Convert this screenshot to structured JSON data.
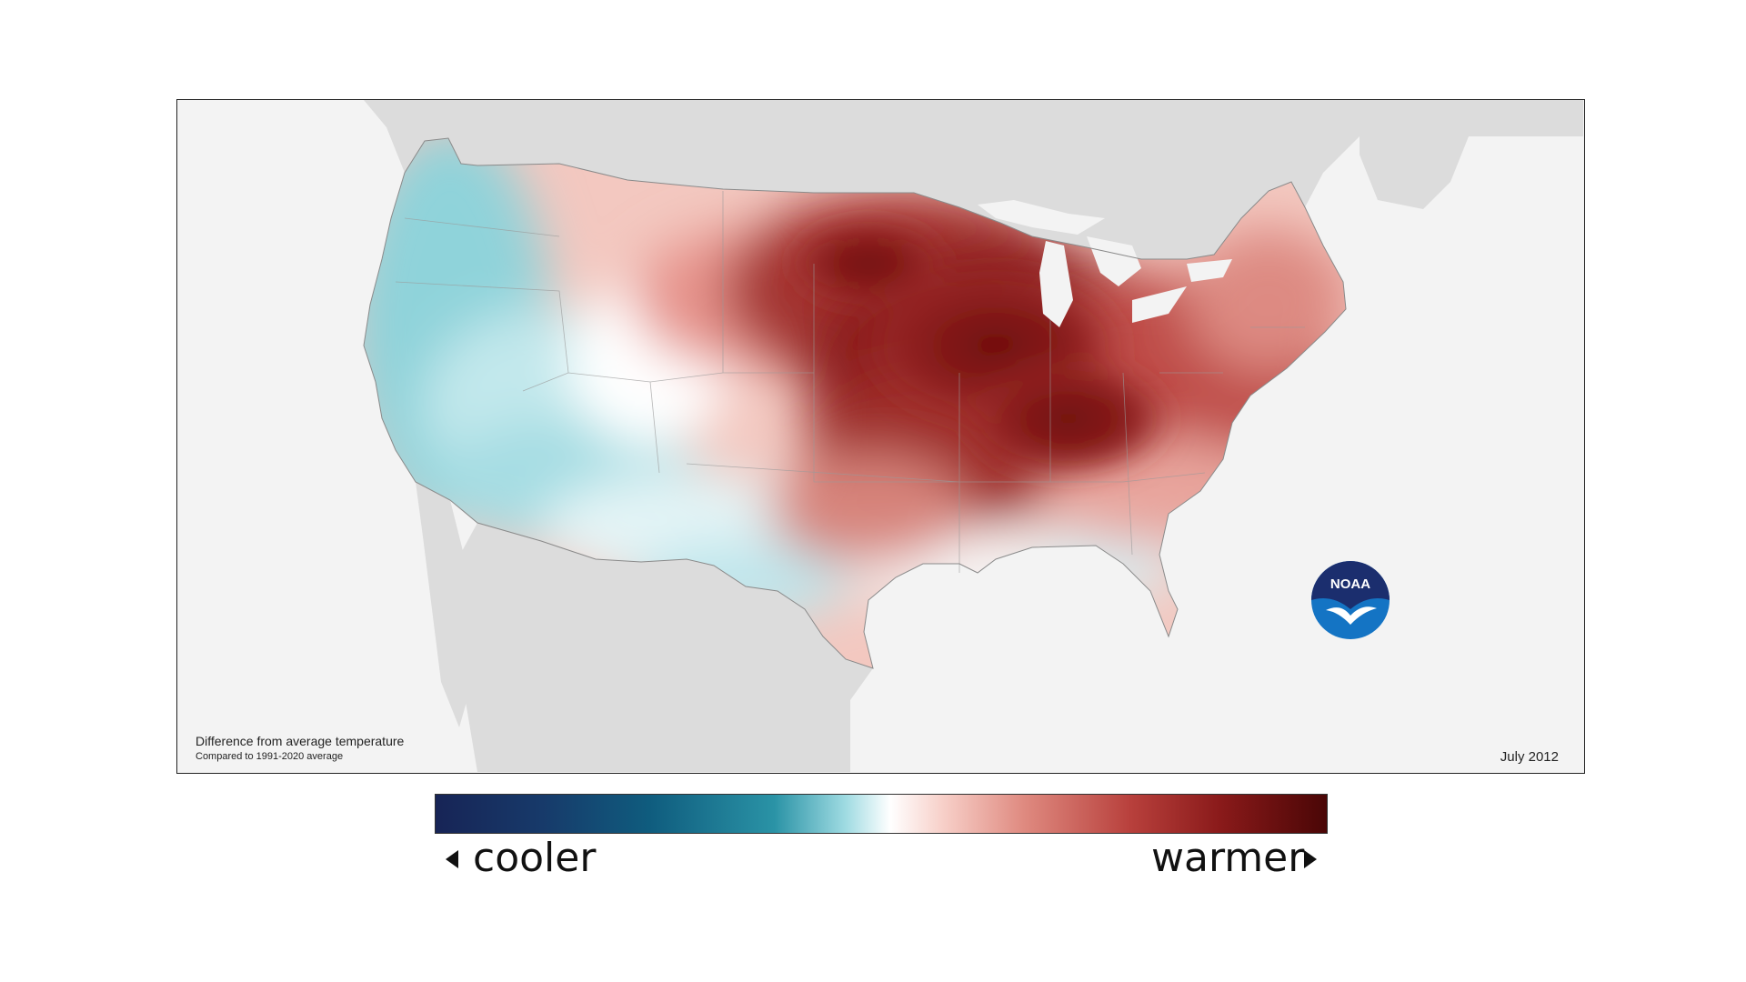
{
  "map": {
    "caption_title": "Difference from average temperature",
    "caption_subtitle": "Compared to 1991-2020 average",
    "date": "July 2012",
    "logo_text": "NOAA",
    "colors": {
      "background": "#f3f3f3",
      "neighbor_land": "#dcdcdc",
      "warm_max": "#6e0d0d",
      "warm_mid": "#c0504a",
      "warm_light": "#f4c6bf",
      "neutral": "#ffffff",
      "cool_light": "#a9e0e6",
      "cool_mid": "#56c0cc"
    }
  },
  "legend": {
    "cooler_label": "cooler",
    "warmer_label": "warmer",
    "colors": [
      "#172456",
      "#0f5c7e",
      "#2a93a6",
      "#9fdbe2",
      "#ffffff",
      "#f7cfc8",
      "#df8a80",
      "#b8403c",
      "#4a0606"
    ]
  }
}
